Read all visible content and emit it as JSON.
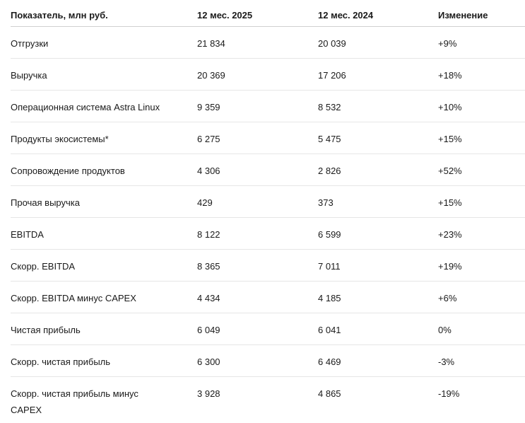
{
  "table": {
    "header": [
      "Показатель, млн руб.",
      "12 мес. 2025",
      "12 мес. 2024",
      "Изменение"
    ],
    "rows": [
      [
        "Отгрузки",
        "21 834",
        "20 039",
        "+9%"
      ],
      [
        "Выручка",
        "20 369",
        "17 206",
        "+18%"
      ],
      [
        "Операционная система Astra Linux",
        "9 359",
        "8 532",
        "+10%"
      ],
      [
        "Продукты экосистемы*",
        "6 275",
        "5 475",
        "+15%"
      ],
      [
        "Сопровождение продуктов",
        "4 306",
        "2 826",
        "+52%"
      ],
      [
        "Прочая выручка",
        "429",
        "373",
        "+15%"
      ],
      [
        "EBITDA",
        "8 122",
        "6 599",
        "+23%"
      ],
      [
        "Скорр. EBITDA",
        "8 365",
        "7 011",
        "+19%"
      ],
      [
        "Скорр. EBITDA минус CAPEX",
        "4 434",
        "4 185",
        "+6%"
      ],
      [
        "Чистая прибыль",
        "6 049",
        "6 041",
        "0%"
      ],
      [
        "Скорр. чистая прибыль",
        "6 300",
        "6 469",
        "-3%"
      ],
      [
        "Скорр. чистая прибыль минус CAPEX",
        "3 928",
        "4 865",
        "-19%"
      ]
    ]
  }
}
